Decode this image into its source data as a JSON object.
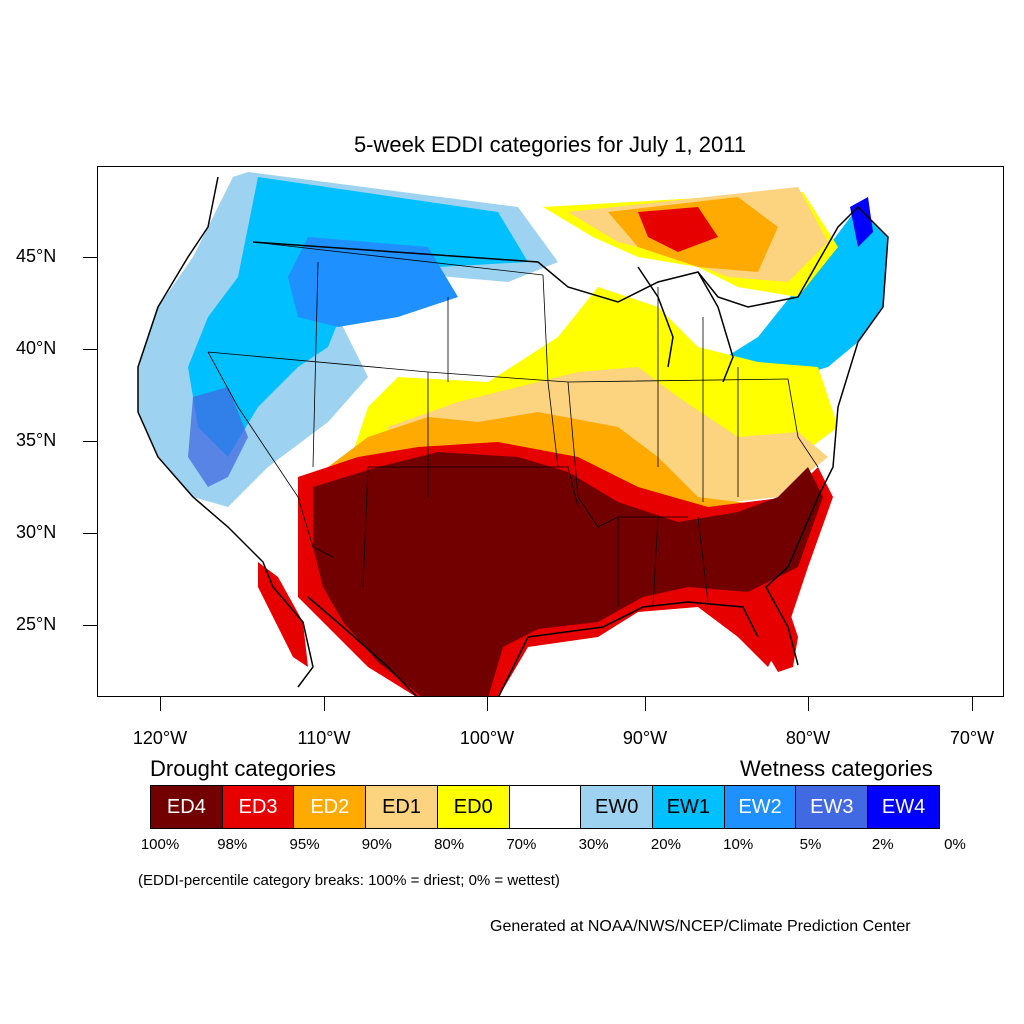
{
  "title": "5-week EDDI categories for July 1, 2011",
  "map": {
    "lat_labels": [
      "45°N",
      "40°N",
      "35°N",
      "30°N",
      "25°N"
    ],
    "lon_labels": [
      "120°W",
      "110°W",
      "100°W",
      "90°W",
      "80°W",
      "70°W"
    ]
  },
  "legend": {
    "drought_heading": "Drought categories",
    "wetness_heading": "Wetness categories",
    "categories": [
      {
        "label": "ED4",
        "color": "#730000",
        "text_color": "#ffffff"
      },
      {
        "label": "ED3",
        "color": "#e60000",
        "text_color": "#ffffff"
      },
      {
        "label": "ED2",
        "color": "#ffaa00",
        "text_color": "#ffffff"
      },
      {
        "label": "ED1",
        "color": "#fcd37f",
        "text_color": "#000000"
      },
      {
        "label": "ED0",
        "color": "#ffff00",
        "text_color": "#000000"
      },
      {
        "label": "",
        "color": "#ffffff",
        "text_color": "#000000"
      },
      {
        "label": "EW0",
        "color": "#9dd3f0",
        "text_color": "#000000"
      },
      {
        "label": "EW1",
        "color": "#00c0ff",
        "text_color": "#000000"
      },
      {
        "label": "EW2",
        "color": "#1e90ff",
        "text_color": "#ffffff"
      },
      {
        "label": "EW3",
        "color": "#4169e1",
        "text_color": "#ffffff"
      },
      {
        "label": "EW4",
        "color": "#0000ff",
        "text_color": "#ffffff"
      }
    ],
    "breaks": [
      "100%",
      "98%",
      "95%",
      "90%",
      "80%",
      "70%",
      "30%",
      "20%",
      "10%",
      "5%",
      "2%",
      "0%"
    ]
  },
  "note": "(EDDI-percentile category breaks: 100% = driest; 0% = wettest)",
  "credit": "Generated at NOAA/NWS/NCEP/Climate Prediction Center"
}
